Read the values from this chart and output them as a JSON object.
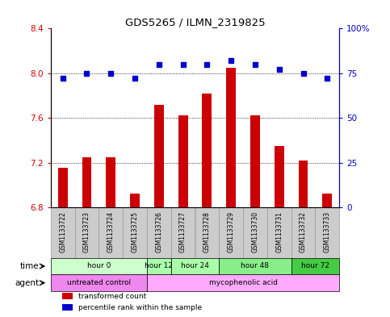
{
  "title": "GDS5265 / ILMN_2319825",
  "samples": [
    "GSM1133722",
    "GSM1133723",
    "GSM1133724",
    "GSM1133725",
    "GSM1133726",
    "GSM1133727",
    "GSM1133728",
    "GSM1133729",
    "GSM1133730",
    "GSM1133731",
    "GSM1133732",
    "GSM1133733"
  ],
  "bar_values": [
    7.15,
    7.25,
    7.25,
    6.92,
    7.72,
    7.62,
    7.82,
    8.05,
    7.62,
    7.35,
    7.22,
    6.92
  ],
  "dot_values": [
    72,
    75,
    75,
    72,
    80,
    80,
    80,
    82,
    80,
    77,
    75,
    72
  ],
  "bar_base": 6.8,
  "ylim_left": [
    6.8,
    8.4
  ],
  "ylim_right": [
    0,
    100
  ],
  "yticks_left": [
    6.8,
    7.2,
    7.6,
    8.0,
    8.4
  ],
  "yticks_right": [
    0,
    25,
    50,
    75,
    100
  ],
  "bar_color": "#cc0000",
  "dot_color": "#0000cc",
  "time_groups": [
    {
      "label": "hour 0",
      "start": 0,
      "end": 3,
      "color": "#ccffcc"
    },
    {
      "label": "hour 12",
      "start": 4,
      "end": 4,
      "color": "#aaffaa"
    },
    {
      "label": "hour 24",
      "start": 5,
      "end": 6,
      "color": "#aaffaa"
    },
    {
      "label": "hour 48",
      "start": 7,
      "end": 9,
      "color": "#88ee88"
    },
    {
      "label": "hour 72",
      "start": 10,
      "end": 11,
      "color": "#44cc44"
    }
  ],
  "agent_groups": [
    {
      "label": "untreated control",
      "start": 0,
      "end": 3,
      "color": "#ee88ee"
    },
    {
      "label": "mycophenolic acid",
      "start": 4,
      "end": 11,
      "color": "#ffaaff"
    }
  ],
  "legend_items": [
    {
      "label": "transformed count",
      "color": "#cc0000"
    },
    {
      "label": "percentile rank within the sample",
      "color": "#0000cc"
    }
  ],
  "left_axis_color": "#cc0000",
  "right_axis_color": "#0000bb",
  "sample_box_color": "#cccccc",
  "sample_box_edge": "#999999"
}
